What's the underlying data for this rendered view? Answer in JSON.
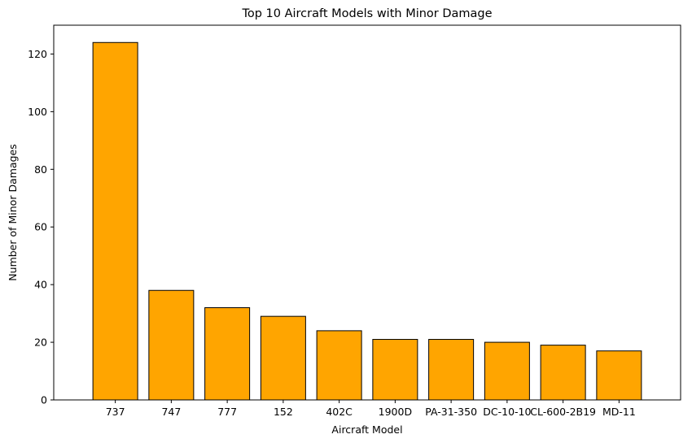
{
  "chart_data": {
    "type": "bar",
    "title": "Top 10 Aircraft Models with Minor Damage",
    "xlabel": "Aircraft Model",
    "ylabel": "Number of Minor Damages",
    "categories": [
      "737",
      "747",
      "777",
      "152",
      "402C",
      "1900D",
      "PA-31-350",
      "DC-10-10",
      "CL-600-2B19",
      "MD-11"
    ],
    "values": [
      124,
      38,
      32,
      29,
      24,
      21,
      21,
      20,
      19,
      17
    ],
    "ylim": [
      0,
      130
    ],
    "yticks": [
      0,
      20,
      40,
      60,
      80,
      100,
      120
    ],
    "grid": false,
    "bar_color": "#ffa500",
    "bar_edge_color": "#000000"
  }
}
